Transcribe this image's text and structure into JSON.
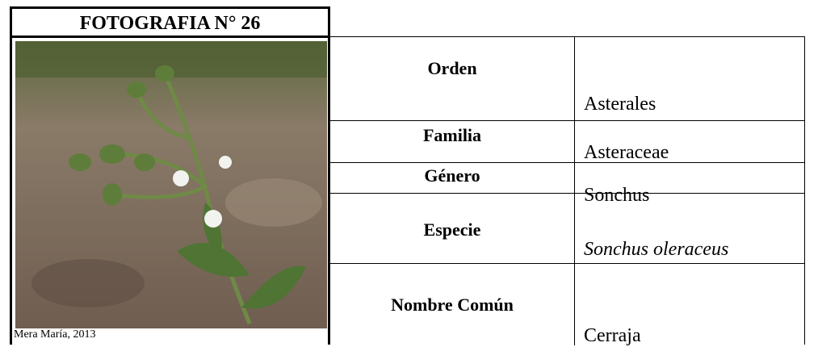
{
  "header": {
    "title": "FOTOGRAFIA N° 26"
  },
  "photo": {
    "caption": "Mera María, 2013"
  },
  "table": {
    "rows": [
      [
        "Orden",
        "Asterales"
      ],
      [
        "Familia",
        "Asteraceae"
      ],
      [
        "Género",
        "Sonchus"
      ],
      [
        "Especie",
        "Sonchus oleraceus"
      ],
      [
        "Nombre Común",
        "Cerraja"
      ]
    ]
  }
}
